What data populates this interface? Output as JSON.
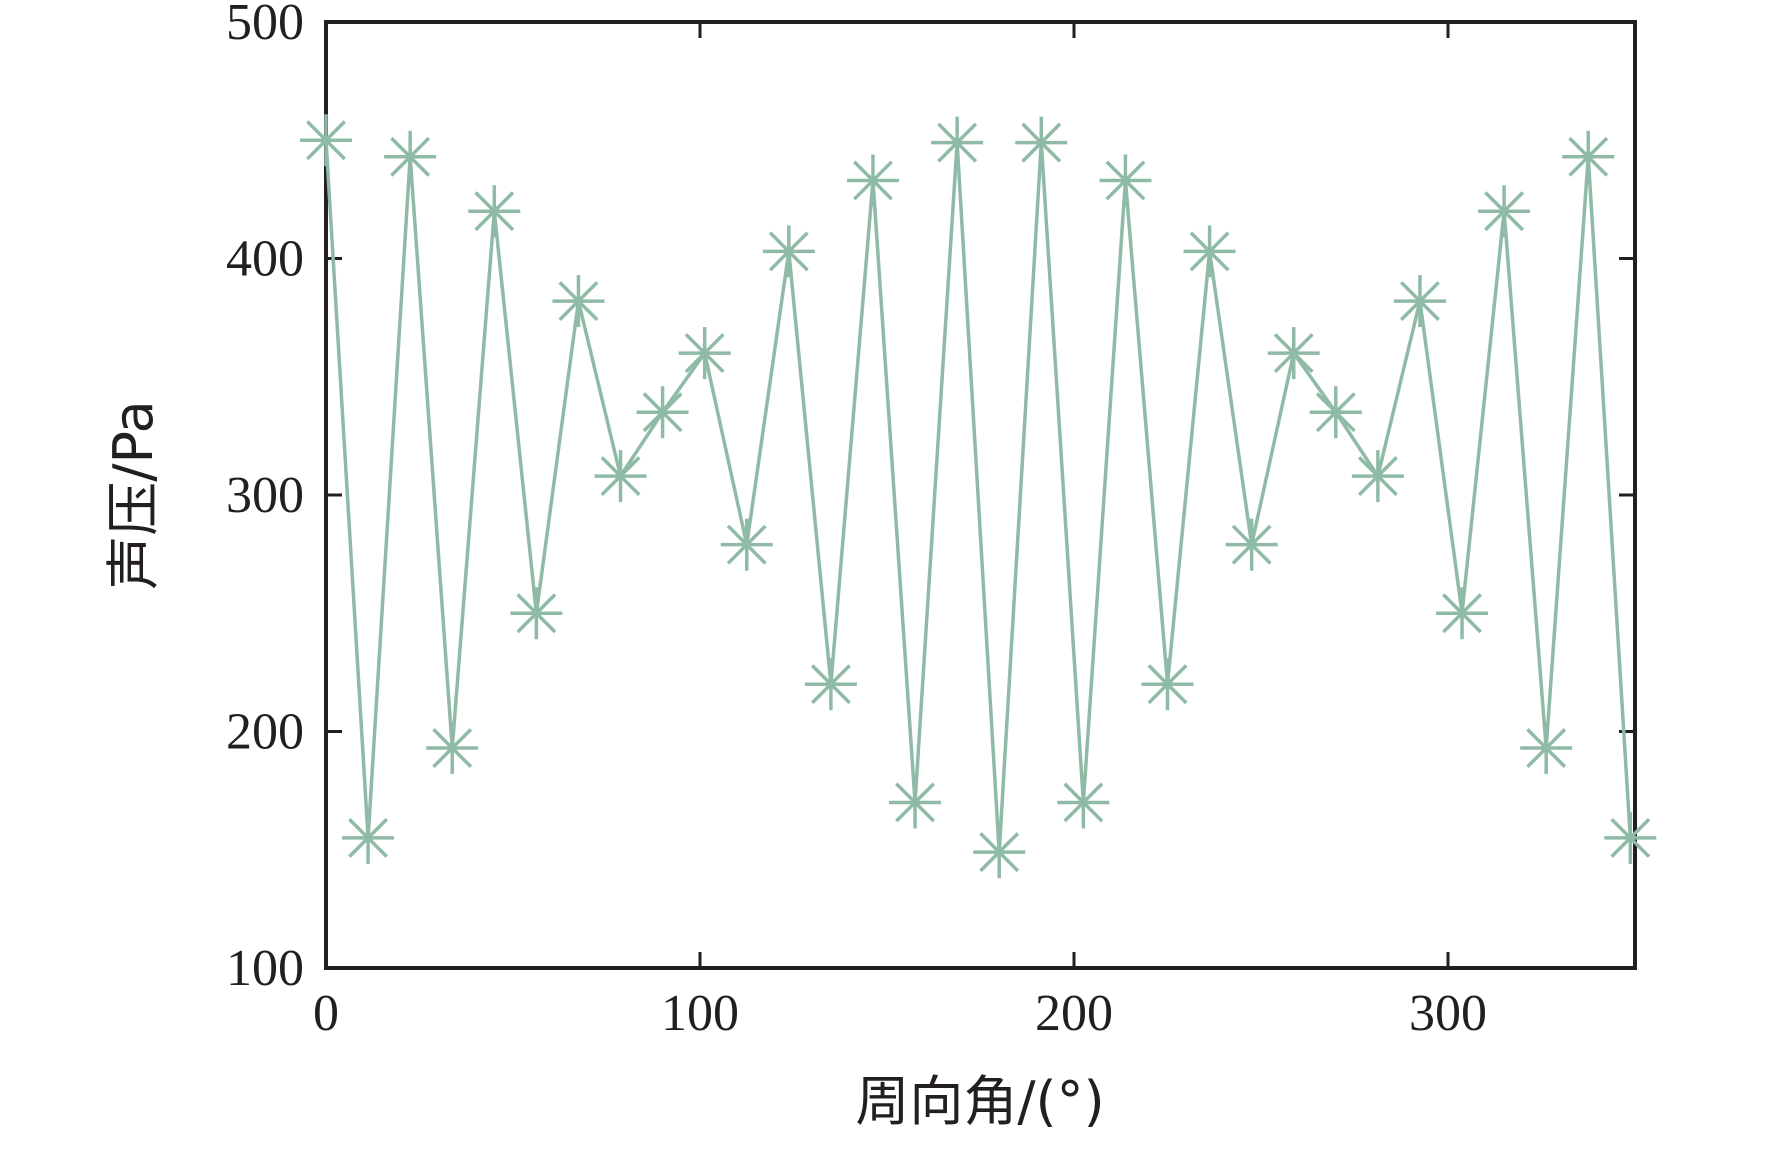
{
  "chart_data": {
    "type": "line",
    "title": "",
    "xlabel": "周向角/(°)",
    "ylabel": "声压/Pa",
    "xlim": [
      0,
      350
    ],
    "ylim": [
      100,
      500
    ],
    "xticks": [
      0,
      100,
      200,
      300
    ],
    "yticks": [
      100,
      200,
      300,
      400,
      500
    ],
    "xtick_labels": [
      "0",
      "100",
      "200",
      "300"
    ],
    "ytick_labels": [
      "100",
      "200",
      "300",
      "400",
      "500"
    ],
    "grid": false,
    "legend": "none",
    "marker": "asterisk",
    "line_color": "#8fbba6",
    "series": [
      {
        "x": [
          0,
          11.25,
          22.5,
          33.75,
          45,
          56.25,
          67.5,
          78.75,
          90,
          101.25,
          112.5,
          123.75,
          135,
          146.25,
          157.5,
          168.75,
          180,
          191.25,
          202.5,
          213.75,
          225,
          236.25,
          247.5,
          258.75,
          270,
          281.25,
          292.5,
          303.75,
          315,
          326.25,
          337.5,
          348.75
        ],
        "values": [
          450,
          155,
          443,
          193,
          420,
          250,
          382,
          308,
          335,
          360,
          279,
          403,
          220,
          433,
          170,
          449,
          149,
          449,
          170,
          433,
          220,
          403,
          279,
          360,
          335,
          308,
          382,
          250,
          420,
          193,
          443,
          155
        ]
      }
    ]
  }
}
